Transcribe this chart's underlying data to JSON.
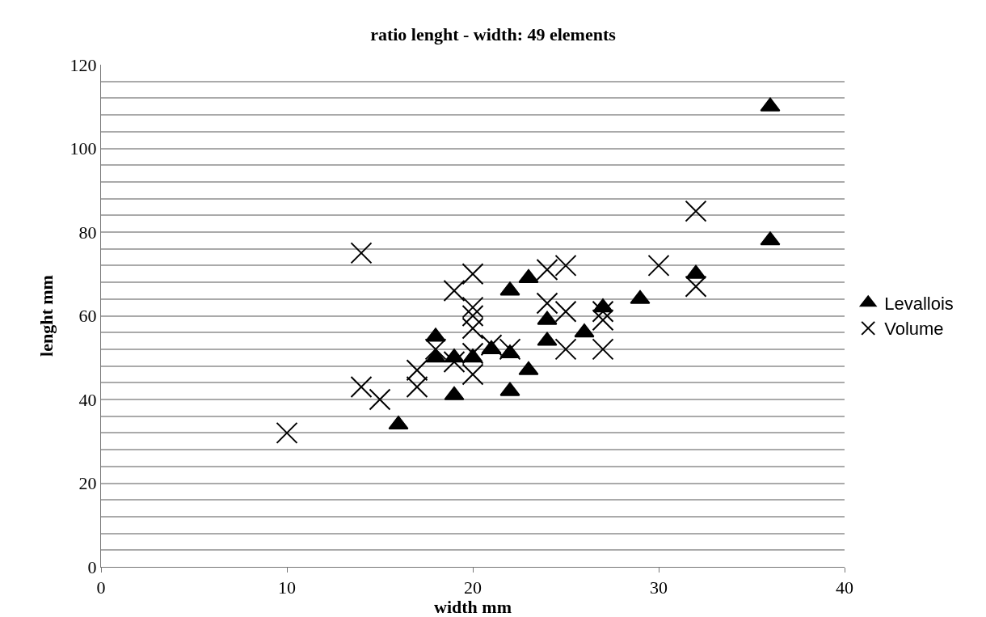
{
  "chart_data": {
    "type": "scatter",
    "title": "ratio lenght - width: 49 elements",
    "xlabel": "width mm",
    "ylabel": "lenght mm",
    "xlim": [
      0,
      40
    ],
    "xticks": [
      0,
      10,
      20,
      30,
      40
    ],
    "ylim": [
      0,
      120
    ],
    "yticks": [
      0,
      {
        "value": 4,
        "label": null
      },
      {
        "value": 8,
        "label": null
      },
      {
        "value": 12,
        "label": null
      },
      {
        "value": 16,
        "label": null
      },
      20,
      {
        "value": 24,
        "label": null
      },
      {
        "value": 28,
        "label": null
      },
      {
        "value": 32,
        "label": null
      },
      {
        "value": 36,
        "label": null
      },
      40,
      {
        "value": 44,
        "label": null
      },
      {
        "value": 48,
        "label": null
      },
      {
        "value": 52,
        "label": null
      },
      {
        "value": 56,
        "label": null
      },
      60,
      {
        "value": 64,
        "label": null
      },
      {
        "value": 68,
        "label": null
      },
      {
        "value": 72,
        "label": null
      },
      {
        "value": 76,
        "label": null
      },
      80,
      {
        "value": 84,
        "label": null
      },
      {
        "value": 88,
        "label": null
      },
      {
        "value": 92,
        "label": null
      },
      {
        "value": 96,
        "label": null
      },
      100,
      {
        "value": 104,
        "label": null
      },
      {
        "value": 108,
        "label": null
      },
      {
        "value": 112,
        "label": null
      },
      {
        "value": 116,
        "label": null
      },
      120
    ],
    "grid": "y",
    "legend": "right",
    "series": [
      {
        "name": "Levallois",
        "color": "#000000",
        "marker": "triangle",
        "x": [
          36,
          36,
          32,
          29,
          27,
          26,
          24,
          24,
          23,
          23,
          22,
          22,
          22,
          21,
          20,
          19,
          19,
          18,
          18,
          16
        ],
        "values": [
          110,
          78,
          70,
          64,
          62,
          56,
          59,
          54,
          69,
          47,
          66,
          51,
          42,
          52,
          50,
          50,
          41,
          55,
          50,
          34
        ]
      },
      {
        "name": "Volume",
        "color": "#000000",
        "marker": "cross",
        "x": [
          10,
          14,
          14,
          15,
          17,
          17,
          18,
          19,
          19,
          20,
          20,
          20,
          20,
          20,
          20,
          21,
          22,
          24,
          25,
          24,
          25,
          25,
          27,
          27,
          27,
          30,
          32,
          32
        ],
        "values": [
          32,
          75,
          43,
          40,
          47,
          43,
          52,
          66,
          49,
          70,
          62,
          60,
          57,
          46,
          51,
          53,
          52,
          71,
          72,
          63,
          61,
          52,
          61,
          59,
          52,
          72,
          85,
          67
        ]
      }
    ]
  }
}
